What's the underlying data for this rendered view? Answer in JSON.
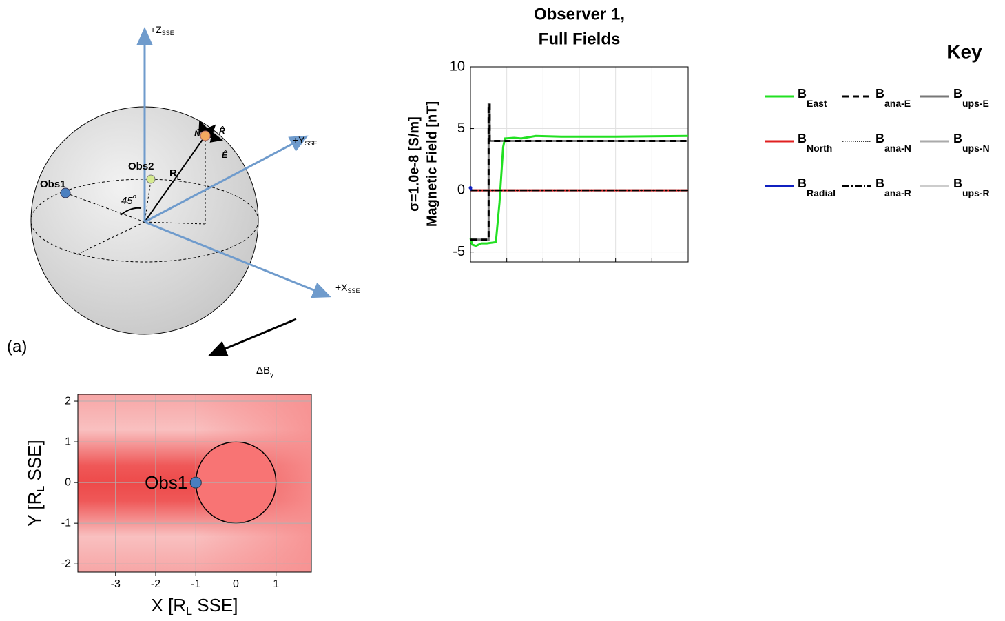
{
  "diagram": {
    "z_axis": {
      "label": "+Z",
      "sub": "SSE"
    },
    "y_axis": {
      "label": "+Y",
      "sub": "SSE"
    },
    "x_axis": {
      "label": "+X",
      "sub": "SSE"
    },
    "obs1": "Obs1",
    "obs2": "Obs2",
    "angle": {
      "label": "45",
      "sup": "o"
    },
    "radius": {
      "label": "R",
      "sub": "L"
    },
    "n_hat": "N̂",
    "r_hat": "R̂",
    "e_hat": "Ê",
    "panel": "(a)",
    "delta": {
      "label": "ΔB",
      "sub": "y"
    }
  },
  "chart_data": [
    {
      "type": "line",
      "title": [
        "Observer 1,",
        "Full Fields"
      ],
      "ylabel": [
        "σ=1.0e-8 [S/m]",
        "Magnetic Field [nT]"
      ],
      "xlim": [
        0,
        6
      ],
      "xticks": [
        0,
        1,
        2,
        3,
        4,
        5,
        6
      ],
      "ylim": [
        -5.8,
        10
      ],
      "yticks": [
        -5,
        0,
        5,
        10
      ],
      "grid": true,
      "legend_title": "Key",
      "series": [
        {
          "name": "B",
          "sub": "East",
          "color": "#22e022",
          "style": "solid",
          "x": [
            0,
            0.05,
            0.15,
            0.3,
            0.45,
            0.7,
            0.8,
            0.9,
            0.95,
            1.2,
            1.4,
            1.8,
            2.5,
            4,
            6
          ],
          "values": [
            -3.9,
            -4.4,
            -4.5,
            -4.3,
            -4.3,
            -4.2,
            -1,
            3.5,
            4.2,
            4.25,
            4.2,
            4.4,
            4.35,
            4.35,
            4.4
          ]
        },
        {
          "name": "B",
          "sub": "North",
          "color": "#e02020",
          "style": "solid",
          "x": [
            0,
            6
          ],
          "values": [
            0,
            0
          ]
        },
        {
          "name": "B",
          "sub": "Radial",
          "color": "#1020c0",
          "style": "solid",
          "x": [
            0,
            0.03
          ],
          "values": [
            0.2,
            0
          ]
        },
        {
          "name": "B",
          "sub": "ana-E",
          "color": "#000000",
          "style": "dashed",
          "x": [
            0,
            0.5,
            0.5,
            0.53,
            0.53,
            6
          ],
          "values": [
            -4,
            -4,
            7,
            7,
            4,
            4
          ]
        },
        {
          "name": "B",
          "sub": "ana-N",
          "color": "#000000",
          "style": "dotted",
          "x": [
            0,
            6
          ],
          "values": [
            0,
            0
          ]
        },
        {
          "name": "B",
          "sub": "ana-R",
          "color": "#000000",
          "style": "dashdot",
          "x": [
            0,
            6
          ],
          "values": [
            0,
            0
          ]
        },
        {
          "name": "B",
          "sub": "ups-E",
          "color": "#777777",
          "style": "solid",
          "x": [
            0,
            0.5,
            0.5,
            0.53,
            0.53,
            6
          ],
          "values": [
            -4,
            -4,
            7,
            7,
            4,
            4
          ]
        },
        {
          "name": "B",
          "sub": "ups-N",
          "color": "#aaaaaa",
          "style": "solid",
          "x": [
            0,
            6
          ],
          "values": [
            0,
            0
          ]
        },
        {
          "name": "B",
          "sub": "ups-R",
          "color": "#cccccc",
          "style": "solid",
          "x": [
            0,
            6
          ],
          "values": [
            0,
            0
          ]
        }
      ]
    },
    {
      "type": "map",
      "xlabel": [
        "X [R",
        "L",
        " SSE]"
      ],
      "ylabel": [
        "Y [R",
        "L",
        " SSE]"
      ],
      "xlim": [
        -3.94,
        1.88
      ],
      "xticks": [
        -3,
        -2,
        -1,
        0,
        1
      ],
      "ylim": [
        -2.2,
        2.17
      ],
      "yticks": [
        -2,
        -1,
        0,
        1,
        2
      ],
      "grid": true,
      "circle": {
        "center": [
          0,
          0
        ],
        "radius": 1
      },
      "point": {
        "label": "Obs1",
        "x": -1,
        "y": 0,
        "color": "#4a7fc0"
      }
    }
  ]
}
